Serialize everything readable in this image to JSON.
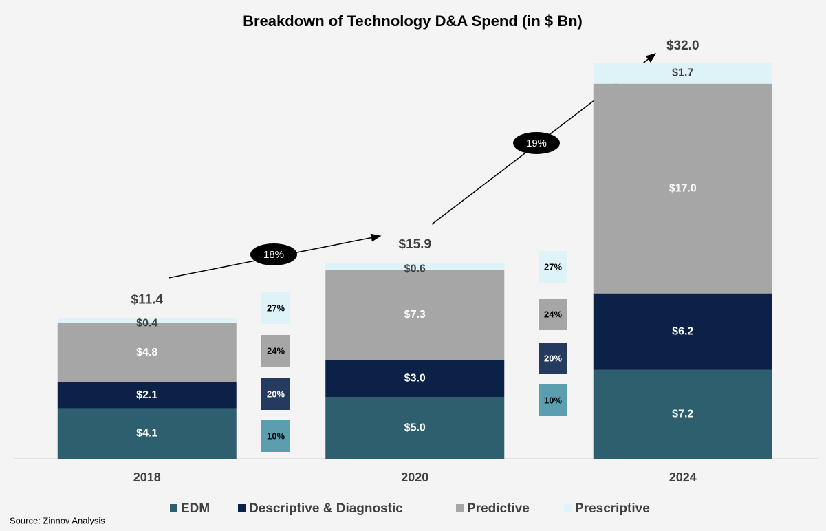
{
  "chart_data": {
    "type": "stacked_bar",
    "title": "Breakdown of Technology D&A Spend (in $ Bn)",
    "categories": [
      "2018",
      "2020",
      "2024"
    ],
    "series": [
      {
        "name": "EDM",
        "color": "#2e5f6e",
        "label_color": "#ffffff",
        "values": [
          4.1,
          5.0,
          7.2
        ],
        "value_labels": [
          "$4.1",
          "$5.0",
          "$7.2"
        ],
        "growth": [
          "10%",
          "10%"
        ],
        "growth_color": "#5a9eb0"
      },
      {
        "name": "Descriptive & Diagnostic",
        "color": "#0c2148",
        "label_color": "#ffffff",
        "values": [
          2.1,
          3.0,
          6.2
        ],
        "value_labels": [
          "$2.1",
          "$3.0",
          "$6.2"
        ],
        "growth": [
          "20%",
          "20%"
        ],
        "growth_color": "#243a5e"
      },
      {
        "name": "Predictive",
        "color": "#a6a6a6",
        "label_color": "#ffffff",
        "values": [
          4.8,
          7.3,
          17.0
        ],
        "value_labels": [
          "$4.8",
          "$7.3",
          "$17.0"
        ],
        "growth": [
          "24%",
          "24%"
        ],
        "growth_color": "#a6a6a6"
      },
      {
        "name": "Prescriptive",
        "color": "#ddf3f8",
        "label_color": "#404040",
        "values": [
          0.4,
          0.6,
          1.7
        ],
        "value_labels": [
          "$0.4",
          "$0.6",
          "$1.7"
        ],
        "growth": [
          "27%",
          "27%"
        ],
        "growth_color": "#ddf3f8"
      }
    ],
    "totals": [
      11.4,
      15.9,
      32.0
    ],
    "total_labels": [
      "$11.4",
      "$15.9",
      "$32.0"
    ],
    "cagr": [
      "18%",
      "19%"
    ],
    "source": "Source: Zinnov Analysis"
  }
}
